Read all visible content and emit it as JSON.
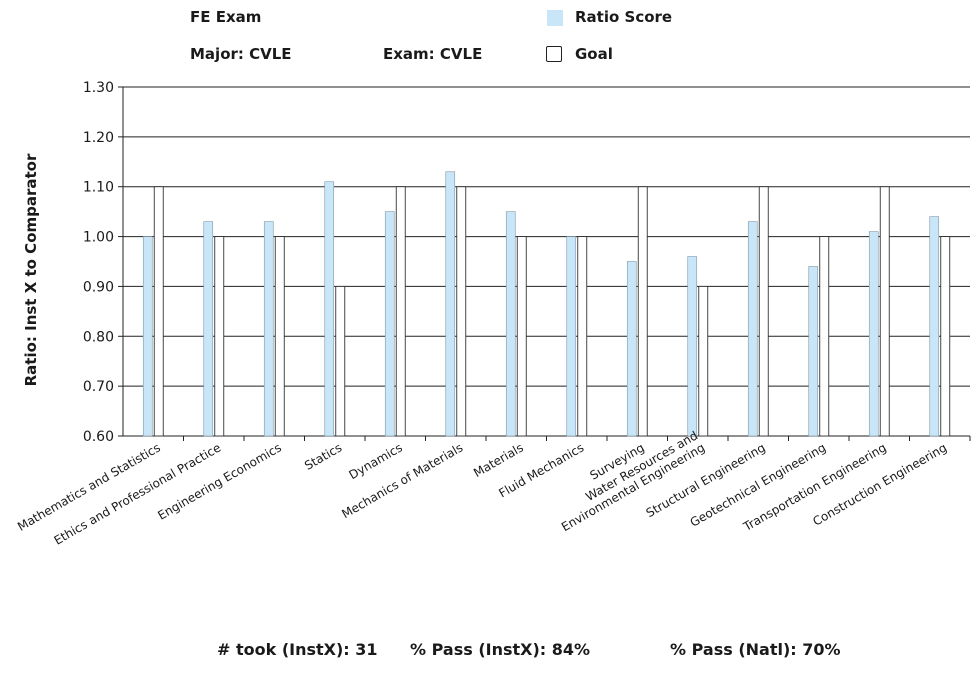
{
  "header": {
    "exam_title": "FE Exam",
    "major": "Major: CVLE",
    "exam": "Exam: CVLE"
  },
  "footer": {
    "took": "# took (InstX): 31",
    "pass_instx": "% Pass (InstX): 84%",
    "pass_natl": "% Pass (Natl): 70%"
  },
  "colors": {
    "ratio_fill": "#c9e6f8",
    "ratio_stroke": "#7f98a8",
    "goal_fill": "#ffffff",
    "goal_stroke": "#333333",
    "grid": "#222222"
  },
  "chart_data": {
    "type": "bar",
    "title": "",
    "xlabel": "",
    "ylabel": "Ratio: Inst X to Comparator",
    "ylim": [
      0.6,
      1.3
    ],
    "yticks": [
      "0.60",
      "0.70",
      "0.80",
      "0.90",
      "1.00",
      "1.10",
      "1.20",
      "1.30"
    ],
    "grid": true,
    "legend_position": "top-right",
    "categories": [
      "Mathematics and Statistics",
      "Ethics and Professional Practice",
      "Engineering Economics",
      "Statics",
      "Dynamics",
      "Mechanics of Materials",
      "Materials",
      "Fluid Mechanics",
      "Surveying",
      "Water Resources and\nEnvironmental Engineering",
      "Structural Engineering",
      "Geotechnical Engineering",
      "Transportation Engineering",
      "Construction Engineering"
    ],
    "series": [
      {
        "name": "Ratio Score",
        "values": [
          1.0,
          1.03,
          1.03,
          1.11,
          1.05,
          1.13,
          1.05,
          1.0,
          0.95,
          0.96,
          1.03,
          0.94,
          1.01,
          1.04
        ]
      },
      {
        "name": "Goal",
        "values": [
          1.1,
          1.0,
          1.0,
          0.9,
          1.1,
          1.1,
          1.0,
          1.0,
          1.1,
          0.9,
          1.1,
          1.0,
          1.1,
          1.0
        ]
      }
    ]
  }
}
